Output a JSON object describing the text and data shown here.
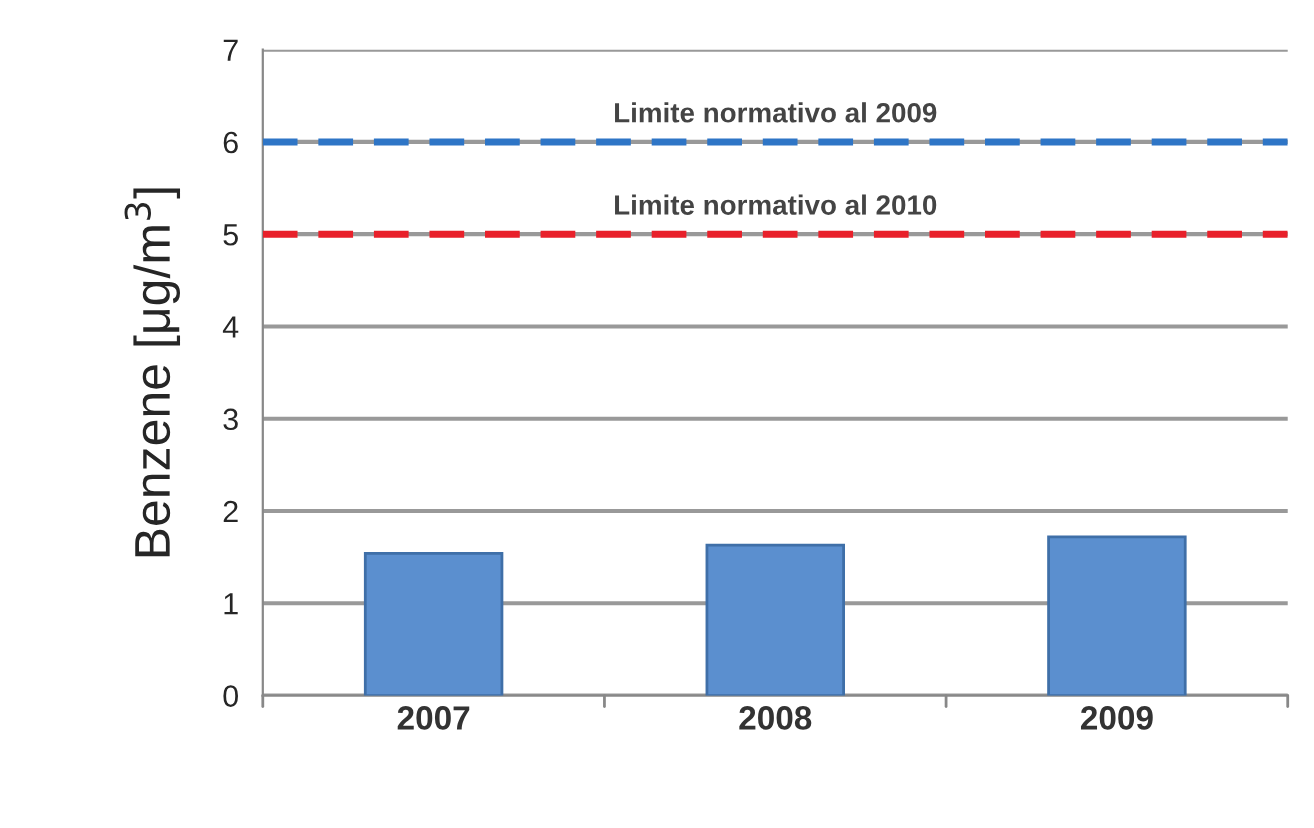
{
  "chart_data": {
    "type": "bar",
    "ylabel": "Benzene [μg/m$^{3}$]",
    "categories": [
      "2007",
      "2008",
      "2009"
    ],
    "series": [
      {
        "color": "#5b8fcf",
        "values": [
          1.54,
          1.63,
          1.72
        ]
      }
    ],
    "ylim": [
      0,
      7
    ],
    "yticks": [
      0,
      1,
      2,
      3,
      4,
      5,
      6,
      7
    ],
    "grid": "y",
    "ref_lines": [
      {
        "axis": "y",
        "value": 6,
        "label": "Limite normativo al 2009",
        "color": "#2e75c6",
        "line_style": "dashed"
      },
      {
        "axis": "y",
        "value": 5,
        "label": "Limite normativo al 2010",
        "color": "#e8202a",
        "line_style": "dashed"
      }
    ]
  }
}
